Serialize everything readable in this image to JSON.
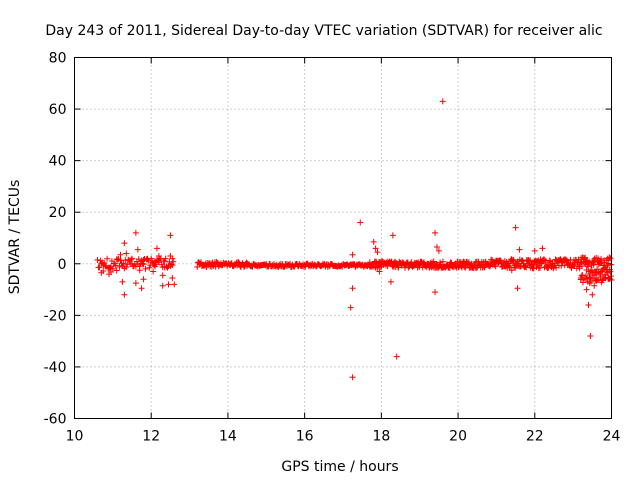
{
  "chart_data": {
    "type": "scatter",
    "title": "Day 243 of 2011, Sidereal Day-to-day VTEC variation (SDTVAR) for receiver alic",
    "xlabel": "GPS time / hours",
    "ylabel": "SDTVAR / TECUs",
    "xlim": [
      10,
      24
    ],
    "ylim": [
      -60,
      80
    ],
    "xticks": [
      10,
      12,
      14,
      16,
      18,
      20,
      22,
      24
    ],
    "yticks": [
      -60,
      -40,
      -20,
      0,
      20,
      40,
      60,
      80
    ],
    "grid": true,
    "marker": "+",
    "color": "#ff0000",
    "series": [
      {
        "name": "SDTVAR",
        "bands": [
          {
            "x_start": 10.6,
            "x_end": 12.6,
            "y_center": 0.0,
            "half_width": 2.0,
            "step": 0.025
          },
          {
            "x_start": 13.2,
            "x_end": 14.5,
            "y_center": -0.3,
            "half_width": 1.0,
            "step": 0.02
          },
          {
            "x_start": 14.5,
            "x_end": 17.7,
            "y_center": -0.6,
            "half_width": 0.6,
            "step": 0.02
          },
          {
            "x_start": 17.7,
            "x_end": 20.5,
            "y_center": -0.4,
            "half_width": 1.3,
            "step": 0.015
          },
          {
            "x_start": 20.5,
            "x_end": 23.2,
            "y_center": 0.0,
            "half_width": 1.8,
            "step": 0.015
          },
          {
            "x_start": 23.2,
            "x_end": 24.0,
            "y_center": -2.5,
            "half_width": 5.0,
            "step": 0.008
          }
        ],
        "points": [
          [
            10.7,
            -3.5
          ],
          [
            10.75,
            -2.8
          ],
          [
            10.9,
            -4.0
          ],
          [
            10.95,
            -3.2
          ],
          [
            11.1,
            -2.6
          ],
          [
            11.2,
            3.5
          ],
          [
            11.25,
            -7.0
          ],
          [
            11.3,
            -12.0
          ],
          [
            11.3,
            8.0
          ],
          [
            11.35,
            4.0
          ],
          [
            11.5,
            2.0
          ],
          [
            11.6,
            12.0
          ],
          [
            11.6,
            -7.5
          ],
          [
            11.65,
            5.5
          ],
          [
            11.7,
            -2.5
          ],
          [
            11.75,
            -9.5
          ],
          [
            11.8,
            -6.0
          ],
          [
            11.8,
            1.5
          ],
          [
            11.9,
            2.0
          ],
          [
            12.05,
            -3.0
          ],
          [
            12.1,
            1.0
          ],
          [
            12.15,
            6.0
          ],
          [
            12.2,
            3.0
          ],
          [
            12.3,
            -8.5
          ],
          [
            12.3,
            -4.5
          ],
          [
            12.35,
            1.0
          ],
          [
            12.45,
            -8.0
          ],
          [
            12.5,
            11.0
          ],
          [
            12.5,
            3.0
          ],
          [
            12.55,
            -5.5
          ],
          [
            12.55,
            2.0
          ],
          [
            12.6,
            -8.0
          ],
          [
            17.2,
            -17.0
          ],
          [
            17.25,
            -44.0
          ],
          [
            17.25,
            -9.5
          ],
          [
            17.25,
            3.5
          ],
          [
            17.45,
            16.0
          ],
          [
            17.8,
            8.5
          ],
          [
            17.85,
            6.0
          ],
          [
            17.9,
            4.5
          ],
          [
            17.95,
            -3.0
          ],
          [
            18.0,
            -1.0
          ],
          [
            18.25,
            -7.0
          ],
          [
            18.3,
            11.0
          ],
          [
            18.4,
            -36.0
          ],
          [
            19.4,
            12.0
          ],
          [
            19.4,
            -11.0
          ],
          [
            19.45,
            6.5
          ],
          [
            19.5,
            5.0
          ],
          [
            19.6,
            63.0
          ],
          [
            21.4,
            -2.5
          ],
          [
            21.45,
            1.5
          ],
          [
            21.5,
            14.0
          ],
          [
            21.55,
            -9.5
          ],
          [
            21.6,
            5.5
          ],
          [
            22.0,
            5.0
          ],
          [
            22.2,
            6.0
          ],
          [
            23.2,
            -5.5
          ],
          [
            23.35,
            -10.0
          ],
          [
            23.4,
            -16.0
          ],
          [
            23.45,
            -28.0
          ],
          [
            23.5,
            -12.0
          ],
          [
            23.55,
            -8.5
          ],
          [
            23.6,
            -6.0
          ],
          [
            23.7,
            -4.0
          ],
          [
            23.8,
            -2.0
          ],
          [
            23.9,
            2.0
          ]
        ]
      }
    ]
  }
}
